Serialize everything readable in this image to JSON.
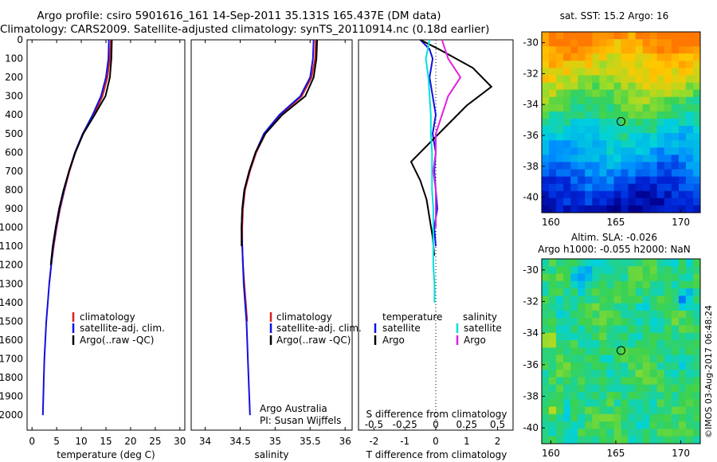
{
  "header": {
    "line1": "Argo profile: csiro 5901616_161 14-Sep-2011 35.131S 165.437E (DM data)",
    "line2": "Climatology: CARS2009. Satellite-adjusted climatology: synTS_20110914.nc (0.18d earlier)"
  },
  "colors": {
    "clim": "#d62020",
    "sat": "#1010e0",
    "argo": "#000000",
    "sal_sat": "#00e0e0",
    "sal_argo": "#e020e0"
  },
  "depth_axis": {
    "ticks": [
      "0",
      "100",
      "200",
      "300",
      "400",
      "500",
      "600",
      "700",
      "800",
      "900",
      "1000",
      "1100",
      "1200",
      "1300",
      "1400",
      "1500",
      "1600",
      "1700",
      "1800",
      "1900",
      "2000"
    ]
  },
  "chart_data": [
    {
      "type": "line",
      "xlabel": "temperature (deg C)",
      "xlim": [
        -1,
        31
      ],
      "ylim": [
        2080,
        0
      ],
      "xticks": [
        "0",
        "5",
        "10",
        "15",
        "20",
        "25",
        "30"
      ],
      "legend": [
        "climatology",
        "satellite-adj. clim.",
        "Argo(..raw -QC)"
      ],
      "series": [
        {
          "name": "climatology",
          "x": [
            16.0,
            15.8,
            15.3,
            14.3,
            12.6,
            10.4,
            8.8,
            7.6,
            6.6,
            5.7,
            5.0,
            4.4,
            3.9,
            3.5
          ],
          "y": [
            0,
            100,
            200,
            300,
            400,
            500,
            600,
            700,
            800,
            900,
            1000,
            1100,
            1200,
            1300
          ]
        },
        {
          "name": "satellite-adj. clim.",
          "x": [
            15.6,
            15.5,
            15.0,
            14.0,
            12.3,
            10.3,
            8.7,
            7.5,
            6.5,
            5.6,
            4.9,
            4.3,
            3.9,
            3.5,
            3.2,
            2.9,
            2.7,
            2.5,
            2.4,
            2.3,
            2.2
          ],
          "y": [
            0,
            100,
            200,
            300,
            400,
            500,
            600,
            700,
            800,
            900,
            1000,
            1100,
            1200,
            1300,
            1400,
            1500,
            1600,
            1700,
            1800,
            1900,
            2000
          ]
        },
        {
          "name": "Argo(..raw -QC)",
          "x": [
            16.2,
            16.1,
            15.8,
            14.9,
            12.7,
            10.4,
            8.8,
            7.5,
            6.4,
            5.5,
            4.8,
            4.2,
            3.8
          ],
          "y": [
            0,
            100,
            200,
            300,
            400,
            500,
            600,
            700,
            800,
            900,
            1000,
            1100,
            1200
          ]
        }
      ]
    },
    {
      "type": "line",
      "xlabel": "salinity",
      "xlim": [
        33.8,
        36.1
      ],
      "ylim": [
        2080,
        0
      ],
      "xticks": [
        "34",
        "34.5",
        "35",
        "35.5",
        "36"
      ],
      "legend": [
        "climatology",
        "satellite-adj. clim.",
        "Argo(..raw -QC)"
      ],
      "annotation": [
        "Argo Australia",
        "PI: Susan Wijffels"
      ],
      "series": [
        {
          "name": "climatology",
          "x": [
            35.58,
            35.57,
            35.52,
            35.38,
            35.08,
            34.86,
            34.73,
            34.64,
            34.57,
            34.54,
            34.53,
            34.53,
            34.54,
            34.56,
            34.58,
            34.6
          ],
          "y": [
            0,
            100,
            200,
            300,
            400,
            500,
            600,
            700,
            800,
            900,
            1000,
            1100,
            1200,
            1300,
            1400,
            1500
          ]
        },
        {
          "name": "satellite-adj. clim.",
          "x": [
            35.55,
            35.54,
            35.5,
            35.36,
            35.06,
            34.84,
            34.72,
            34.63,
            34.56,
            34.53,
            34.52,
            34.53,
            34.54,
            34.55,
            34.57,
            34.59,
            34.6,
            34.61,
            34.62,
            34.63,
            34.64
          ],
          "y": [
            0,
            100,
            200,
            300,
            400,
            500,
            600,
            700,
            800,
            900,
            1000,
            1100,
            1200,
            1300,
            1400,
            1500,
            1600,
            1700,
            1800,
            1900,
            2000
          ]
        },
        {
          "name": "Argo(..raw -QC)",
          "x": [
            35.6,
            35.59,
            35.55,
            35.43,
            35.1,
            34.86,
            34.72,
            34.63,
            34.56,
            34.53,
            34.52,
            34.52
          ],
          "y": [
            0,
            100,
            200,
            300,
            400,
            500,
            600,
            700,
            800,
            900,
            1000,
            1100
          ]
        }
      ]
    },
    {
      "type": "line",
      "xlabel": "T difference from climatology",
      "xlabel_top": "S difference from climatology",
      "xlim": [
        -2.5,
        2.5
      ],
      "ylim": [
        2080,
        0
      ],
      "xticks": [
        "-2",
        "-1",
        "0",
        "1",
        "2"
      ],
      "xticks_s": [
        "-0.5",
        "-0.25",
        "0",
        "0.25",
        "0.5"
      ],
      "legend_temperature": [
        "temperature",
        "satellite",
        "Argo"
      ],
      "legend_salinity": [
        "salinity",
        "satellite",
        "Argo"
      ],
      "series": [
        {
          "name": "temperature satellite",
          "x": [
            -0.5,
            -0.2,
            -0.1,
            -0.2,
            -0.1,
            0.0,
            -0.1,
            0.0,
            -0.05,
            0.0,
            0.05,
            -0.05,
            0.0
          ],
          "y": [
            0,
            50,
            100,
            200,
            300,
            400,
            500,
            600,
            700,
            800,
            900,
            1000,
            1100
          ]
        },
        {
          "name": "temperature Argo",
          "x": [
            -0.5,
            0.1,
            1.2,
            1.8,
            1.0,
            0.4,
            -0.2,
            -0.8,
            -0.5,
            -0.3,
            -0.2,
            -0.1,
            -0.05
          ],
          "y": [
            0,
            50,
            150,
            250,
            350,
            450,
            550,
            650,
            750,
            850,
            950,
            1050,
            1150
          ]
        },
        {
          "name": "salinity satellite",
          "x": [
            -0.05,
            -0.08,
            -0.06,
            -0.05,
            -0.04,
            -0.04,
            -0.03,
            -0.03,
            -0.03,
            -0.02,
            -0.02,
            -0.02,
            -0.02,
            -0.01,
            -0.01
          ],
          "y": [
            0,
            100,
            200,
            300,
            400,
            500,
            600,
            700,
            800,
            900,
            1000,
            1100,
            1200,
            1300,
            1400
          ]
        },
        {
          "name": "salinity Argo",
          "x": [
            0.05,
            0.1,
            0.2,
            0.1,
            0.05,
            0.0,
            0.0,
            -0.02,
            0.0,
            0.0,
            0.0
          ],
          "y": [
            0,
            100,
            200,
            300,
            400,
            500,
            600,
            700,
            800,
            900,
            1000
          ]
        }
      ]
    },
    {
      "type": "heatmap",
      "title": "sat. SST: 15.2 Argo: 16",
      "xlim": [
        159.3,
        171.5
      ],
      "ylim": [
        -41,
        -29.3
      ],
      "xticks": [
        "160",
        "165",
        "170"
      ],
      "yticks": [
        "-30",
        "-32",
        "-34",
        "-36",
        "-38",
        "-40"
      ],
      "marker": [
        165.4,
        -35.1
      ]
    },
    {
      "type": "heatmap",
      "title_line1": "Altim. SLA: -0.026",
      "title_line2": "Argo h1000: -0.055 h2000: NaN",
      "xlim": [
        159.3,
        171.5
      ],
      "ylim": [
        -41,
        -29.3
      ],
      "xticks": [
        "160",
        "165",
        "170"
      ],
      "yticks": [
        "-30",
        "-32",
        "-34",
        "-36",
        "-38",
        "-40"
      ],
      "marker": [
        165.4,
        -35.1
      ]
    }
  ],
  "footer": {
    "stamp": "©IMOS 03-Aug-2017 06:48:24"
  }
}
